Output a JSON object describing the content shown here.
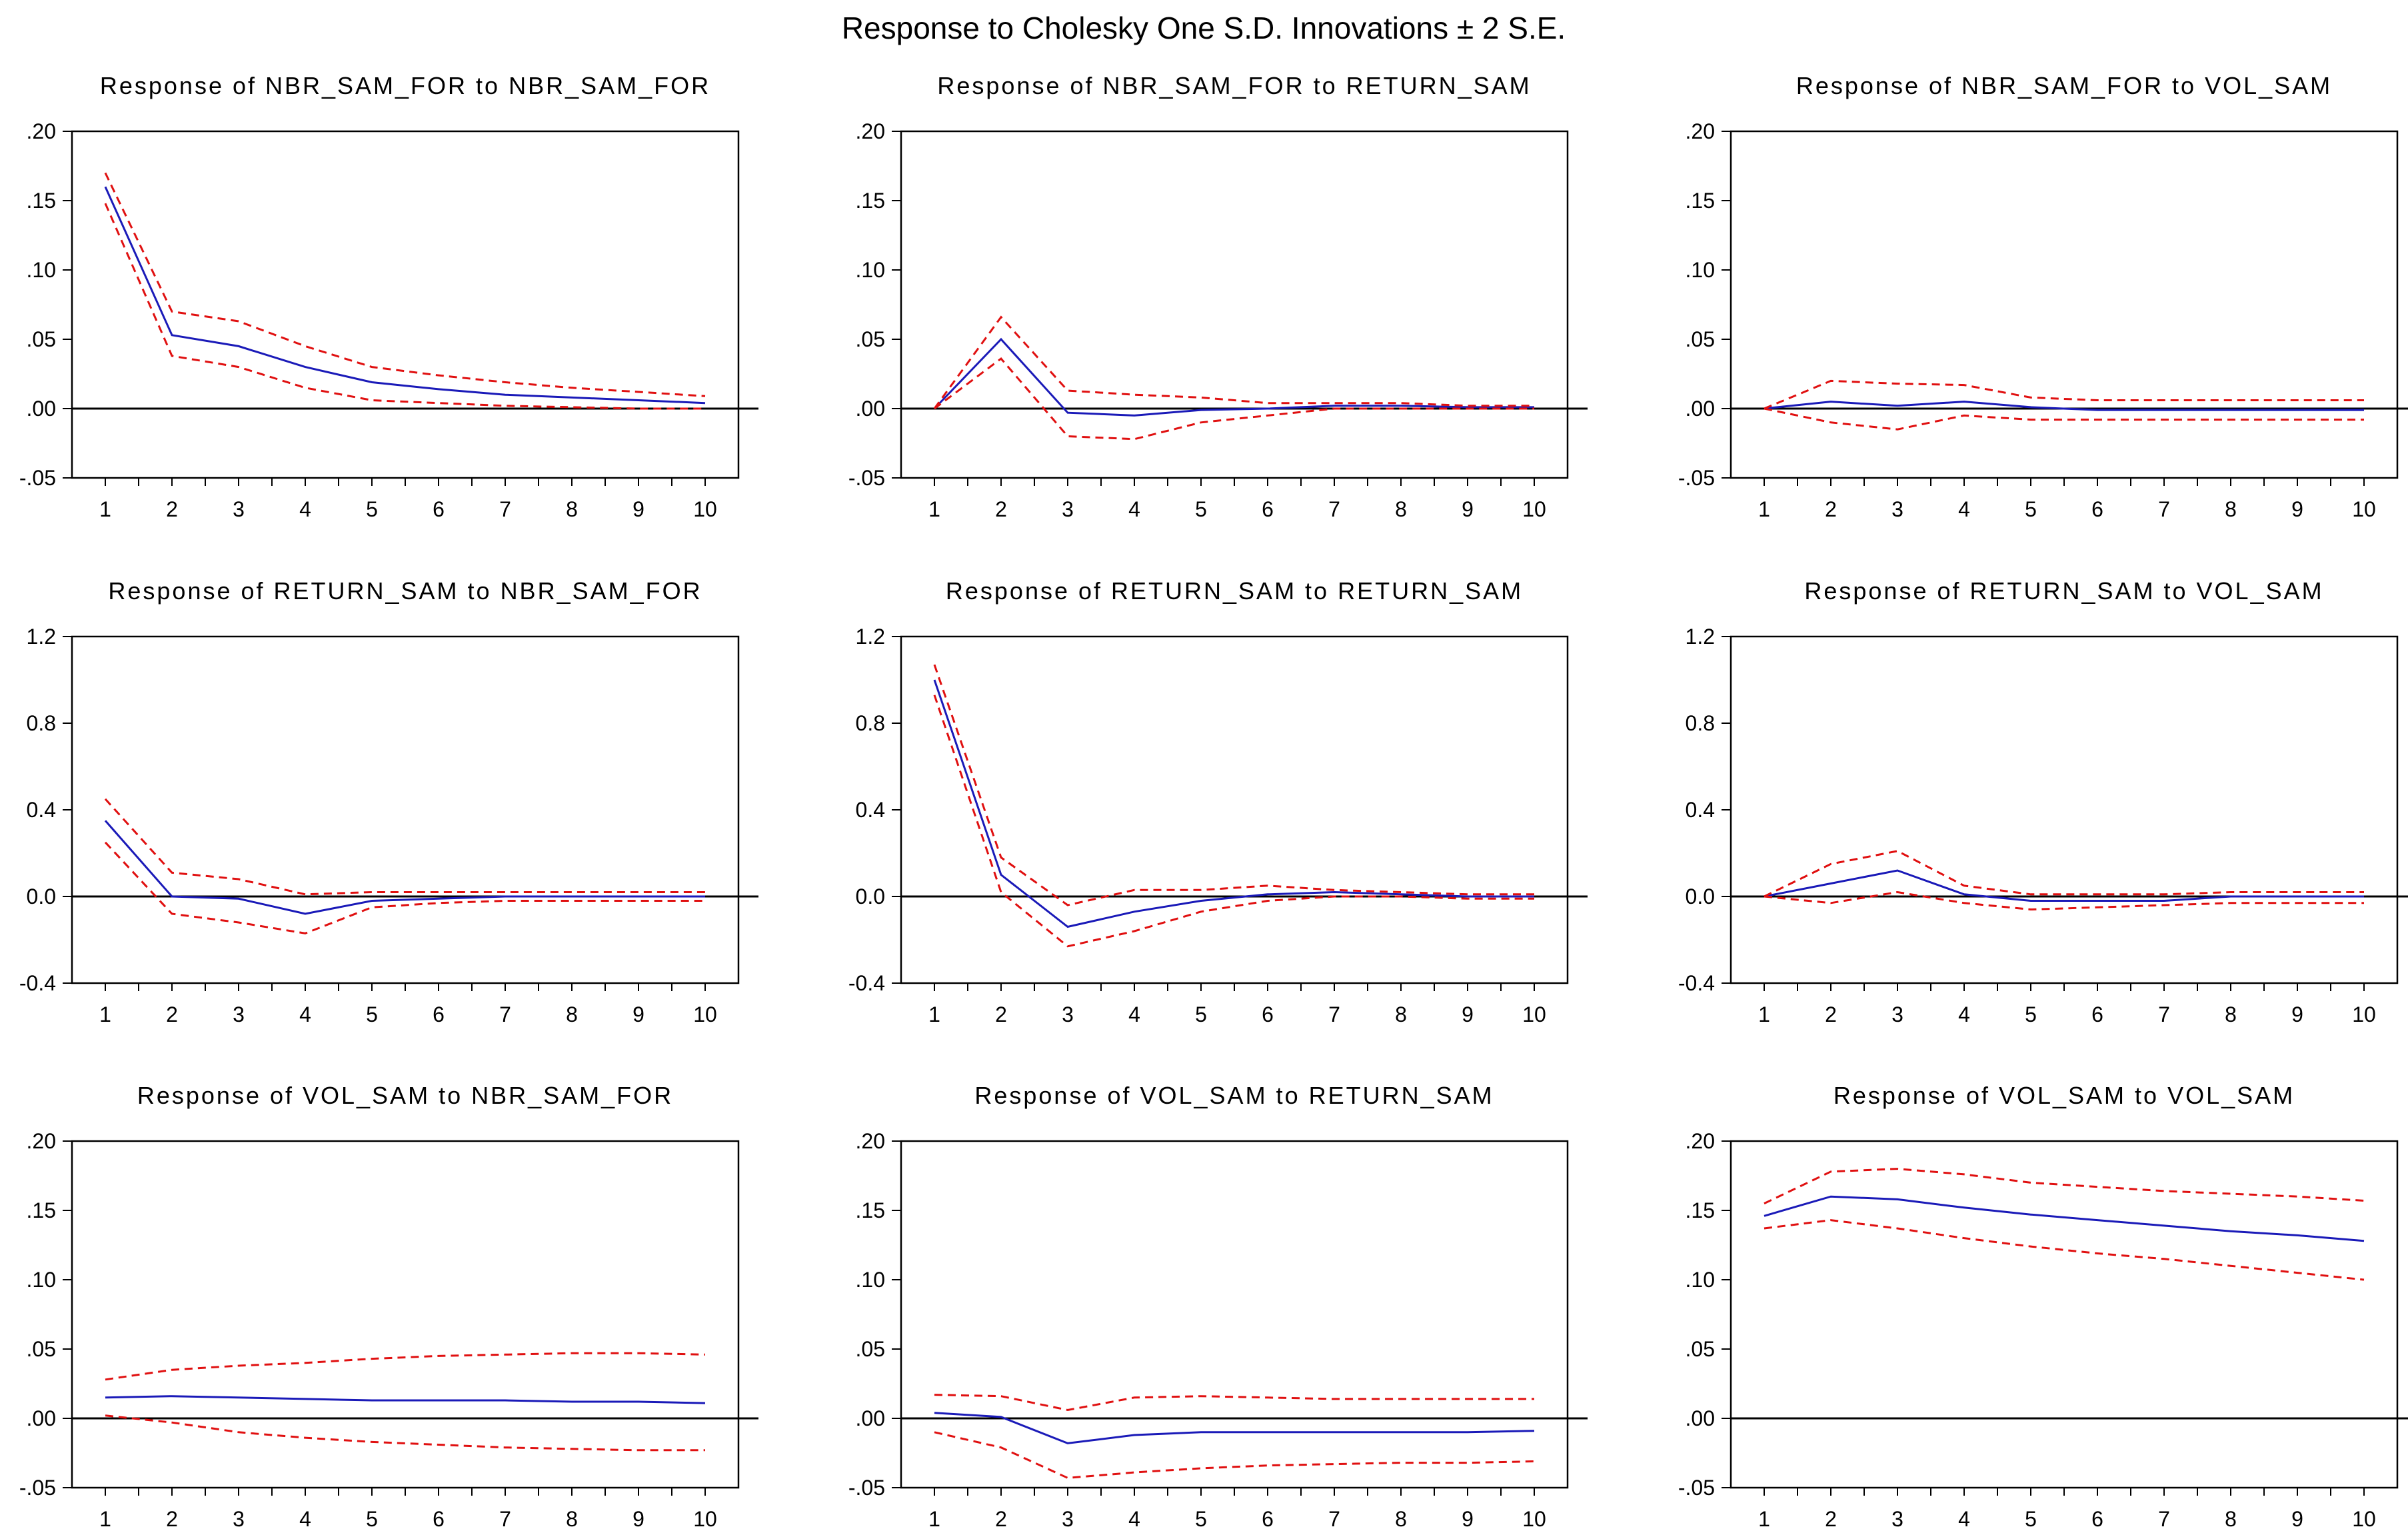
{
  "suptitle": "Response to Cholesky One S.D. Innovations ± 2 S.E.",
  "colors": {
    "response": "#1a1ab8",
    "band": "#e01010",
    "axis": "#000000"
  },
  "chart_data": [
    {
      "type": "line",
      "title": "Response of NBR_SAM_FOR to NBR_SAM_FOR",
      "x": [
        1,
        2,
        3,
        4,
        5,
        6,
        7,
        8,
        9,
        10
      ],
      "ylim": [
        -0.05,
        0.2
      ],
      "yticks": [
        -0.05,
        0.0,
        0.05,
        0.1,
        0.15,
        0.2
      ],
      "ytick_labels": [
        "-.05",
        ".00",
        ".05",
        ".10",
        ".15",
        ".20"
      ],
      "series": [
        {
          "name": "response",
          "values": [
            0.16,
            0.053,
            0.045,
            0.03,
            0.019,
            0.014,
            0.01,
            0.008,
            0.006,
            0.004
          ]
        },
        {
          "name": "upper",
          "values": [
            0.17,
            0.07,
            0.063,
            0.045,
            0.03,
            0.024,
            0.019,
            0.015,
            0.012,
            0.009
          ]
        },
        {
          "name": "lower",
          "values": [
            0.148,
            0.038,
            0.03,
            0.015,
            0.006,
            0.004,
            0.002,
            0.001,
            0.0,
            0.0
          ]
        }
      ]
    },
    {
      "type": "line",
      "title": "Response of NBR_SAM_FOR to RETURN_SAM",
      "x": [
        1,
        2,
        3,
        4,
        5,
        6,
        7,
        8,
        9,
        10
      ],
      "ylim": [
        -0.05,
        0.2
      ],
      "yticks": [
        -0.05,
        0.0,
        0.05,
        0.1,
        0.15,
        0.2
      ],
      "ytick_labels": [
        "-.05",
        ".00",
        ".05",
        ".10",
        ".15",
        ".20"
      ],
      "series": [
        {
          "name": "response",
          "values": [
            0.0,
            0.05,
            -0.003,
            -0.005,
            -0.001,
            0.0,
            0.002,
            0.002,
            0.001,
            0.001
          ]
        },
        {
          "name": "upper",
          "values": [
            0.0,
            0.066,
            0.013,
            0.01,
            0.008,
            0.004,
            0.004,
            0.004,
            0.002,
            0.002
          ]
        },
        {
          "name": "lower",
          "values": [
            0.0,
            0.036,
            -0.02,
            -0.022,
            -0.01,
            -0.005,
            0.0,
            0.0,
            0.0,
            0.0
          ]
        }
      ]
    },
    {
      "type": "line",
      "title": "Response of NBR_SAM_FOR to VOL_SAM",
      "x": [
        1,
        2,
        3,
        4,
        5,
        6,
        7,
        8,
        9,
        10
      ],
      "ylim": [
        -0.05,
        0.2
      ],
      "yticks": [
        -0.05,
        0.0,
        0.05,
        0.1,
        0.15,
        0.2
      ],
      "ytick_labels": [
        "-.05",
        ".00",
        ".05",
        ".10",
        ".15",
        ".20"
      ],
      "series": [
        {
          "name": "response",
          "values": [
            0.0,
            0.005,
            0.002,
            0.005,
            0.001,
            -0.001,
            -0.001,
            -0.001,
            -0.001,
            -0.001
          ]
        },
        {
          "name": "upper",
          "values": [
            0.0,
            0.02,
            0.018,
            0.017,
            0.008,
            0.006,
            0.006,
            0.006,
            0.006,
            0.006
          ]
        },
        {
          "name": "lower",
          "values": [
            0.0,
            -0.01,
            -0.015,
            -0.005,
            -0.008,
            -0.008,
            -0.008,
            -0.008,
            -0.008,
            -0.008
          ]
        }
      ]
    },
    {
      "type": "line",
      "title": "Response of RETURN_SAM to NBR_SAM_FOR",
      "x": [
        1,
        2,
        3,
        4,
        5,
        6,
        7,
        8,
        9,
        10
      ],
      "ylim": [
        -0.4,
        1.2
      ],
      "yticks": [
        -0.4,
        0.0,
        0.4,
        0.8,
        1.2
      ],
      "ytick_labels": [
        "-0.4",
        "0.0",
        "0.4",
        "0.8",
        "1.2"
      ],
      "series": [
        {
          "name": "response",
          "values": [
            0.35,
            0.0,
            -0.01,
            -0.08,
            -0.02,
            -0.01,
            0.0,
            0.0,
            0.0,
            0.0
          ]
        },
        {
          "name": "upper",
          "values": [
            0.45,
            0.11,
            0.08,
            0.01,
            0.02,
            0.02,
            0.02,
            0.02,
            0.02,
            0.02
          ]
        },
        {
          "name": "lower",
          "values": [
            0.25,
            -0.08,
            -0.12,
            -0.17,
            -0.05,
            -0.03,
            -0.02,
            -0.02,
            -0.02,
            -0.02
          ]
        }
      ]
    },
    {
      "type": "line",
      "title": "Response of RETURN_SAM to RETURN_SAM",
      "x": [
        1,
        2,
        3,
        4,
        5,
        6,
        7,
        8,
        9,
        10
      ],
      "ylim": [
        -0.4,
        1.2
      ],
      "yticks": [
        -0.4,
        0.0,
        0.4,
        0.8,
        1.2
      ],
      "ytick_labels": [
        "-0.4",
        "0.0",
        "0.4",
        "0.8",
        "1.2"
      ],
      "series": [
        {
          "name": "response",
          "values": [
            1.0,
            0.1,
            -0.14,
            -0.07,
            -0.02,
            0.01,
            0.02,
            0.01,
            0.0,
            0.0
          ]
        },
        {
          "name": "upper",
          "values": [
            1.07,
            0.18,
            -0.04,
            0.03,
            0.03,
            0.05,
            0.03,
            0.02,
            0.01,
            0.01
          ]
        },
        {
          "name": "lower",
          "values": [
            0.93,
            0.02,
            -0.23,
            -0.16,
            -0.07,
            -0.02,
            0.0,
            0.0,
            -0.01,
            -0.01
          ]
        }
      ]
    },
    {
      "type": "line",
      "title": "Response of RETURN_SAM to VOL_SAM",
      "x": [
        1,
        2,
        3,
        4,
        5,
        6,
        7,
        8,
        9,
        10
      ],
      "ylim": [
        -0.4,
        1.2
      ],
      "yticks": [
        -0.4,
        0.0,
        0.4,
        0.8,
        1.2
      ],
      "ytick_labels": [
        "-0.4",
        "0.0",
        "0.4",
        "0.8",
        "1.2"
      ],
      "series": [
        {
          "name": "response",
          "values": [
            0.0,
            0.06,
            0.12,
            0.01,
            -0.02,
            -0.02,
            -0.02,
            0.0,
            0.0,
            0.0
          ]
        },
        {
          "name": "upper",
          "values": [
            0.0,
            0.15,
            0.21,
            0.05,
            0.01,
            0.01,
            0.01,
            0.02,
            0.02,
            0.02
          ]
        },
        {
          "name": "lower",
          "values": [
            0.0,
            -0.03,
            0.02,
            -0.03,
            -0.06,
            -0.05,
            -0.04,
            -0.03,
            -0.03,
            -0.03
          ]
        }
      ]
    },
    {
      "type": "line",
      "title": "Response of VOL_SAM to NBR_SAM_FOR",
      "x": [
        1,
        2,
        3,
        4,
        5,
        6,
        7,
        8,
        9,
        10
      ],
      "ylim": [
        -0.05,
        0.2
      ],
      "yticks": [
        -0.05,
        0.0,
        0.05,
        0.1,
        0.15,
        0.2
      ],
      "ytick_labels": [
        "-.05",
        ".00",
        ".05",
        ".10",
        ".15",
        ".20"
      ],
      "series": [
        {
          "name": "response",
          "values": [
            0.015,
            0.016,
            0.015,
            0.014,
            0.013,
            0.013,
            0.013,
            0.012,
            0.012,
            0.011
          ]
        },
        {
          "name": "upper",
          "values": [
            0.028,
            0.035,
            0.038,
            0.04,
            0.043,
            0.045,
            0.046,
            0.047,
            0.047,
            0.046
          ]
        },
        {
          "name": "lower",
          "values": [
            0.002,
            -0.003,
            -0.01,
            -0.014,
            -0.017,
            -0.019,
            -0.021,
            -0.022,
            -0.023,
            -0.023
          ]
        }
      ]
    },
    {
      "type": "line",
      "title": "Response of VOL_SAM to RETURN_SAM",
      "x": [
        1,
        2,
        3,
        4,
        5,
        6,
        7,
        8,
        9,
        10
      ],
      "ylim": [
        -0.05,
        0.2
      ],
      "yticks": [
        -0.05,
        0.0,
        0.05,
        0.1,
        0.15,
        0.2
      ],
      "ytick_labels": [
        "-.05",
        ".00",
        ".05",
        ".10",
        ".15",
        ".20"
      ],
      "series": [
        {
          "name": "response",
          "values": [
            0.004,
            0.001,
            -0.018,
            -0.012,
            -0.01,
            -0.01,
            -0.01,
            -0.01,
            -0.01,
            -0.009
          ]
        },
        {
          "name": "upper",
          "values": [
            0.017,
            0.016,
            0.006,
            0.015,
            0.016,
            0.015,
            0.014,
            0.014,
            0.014,
            0.014
          ]
        },
        {
          "name": "lower",
          "values": [
            -0.01,
            -0.021,
            -0.043,
            -0.039,
            -0.036,
            -0.034,
            -0.033,
            -0.032,
            -0.032,
            -0.031
          ]
        }
      ]
    },
    {
      "type": "line",
      "title": "Response of VOL_SAM to VOL_SAM",
      "x": [
        1,
        2,
        3,
        4,
        5,
        6,
        7,
        8,
        9,
        10
      ],
      "ylim": [
        -0.05,
        0.2
      ],
      "yticks": [
        -0.05,
        0.0,
        0.05,
        0.1,
        0.15,
        0.2
      ],
      "ytick_labels": [
        "-.05",
        ".00",
        ".05",
        ".10",
        ".15",
        ".20"
      ],
      "series": [
        {
          "name": "response",
          "values": [
            0.146,
            0.16,
            0.158,
            0.152,
            0.147,
            0.143,
            0.139,
            0.135,
            0.132,
            0.128
          ]
        },
        {
          "name": "upper",
          "values": [
            0.155,
            0.178,
            0.18,
            0.176,
            0.17,
            0.167,
            0.164,
            0.162,
            0.16,
            0.157
          ]
        },
        {
          "name": "lower",
          "values": [
            0.137,
            0.143,
            0.137,
            0.13,
            0.124,
            0.119,
            0.115,
            0.11,
            0.105,
            0.1
          ]
        }
      ]
    }
  ]
}
